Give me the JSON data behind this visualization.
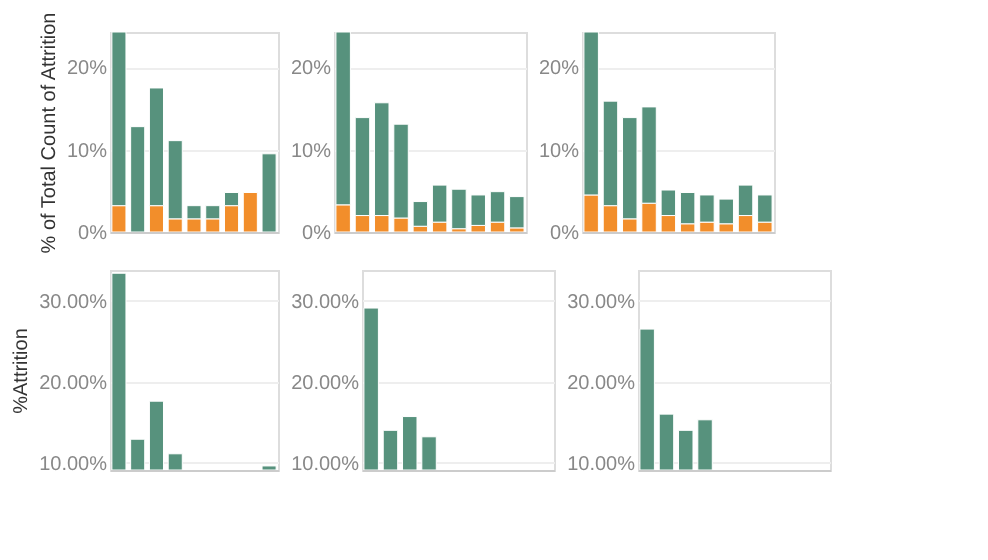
{
  "chart_data": [
    {
      "type": "bar",
      "stacked": true,
      "ylabel": "% of Total Count of Attrition",
      "categories": [
        null,
        null,
        null,
        null,
        null,
        null,
        null,
        null,
        null
      ],
      "ylim": [
        0,
        24.3
      ],
      "yticks": [
        {
          "value": 0,
          "label": "0%"
        },
        {
          "value": 10,
          "label": "10%"
        },
        {
          "value": 20,
          "label": "20%"
        }
      ],
      "grid": "y",
      "tick_labels": "y",
      "series": [
        {
          "color": "#f28e2b",
          "values": [
            3.2,
            null,
            3.2,
            1.6,
            1.6,
            1.6,
            3.2,
            4.8,
            null
          ]
        },
        {
          "color": "#57927d",
          "values": [
            21.1,
            12.8,
            14.3,
            9.5,
            1.6,
            1.6,
            1.6,
            null,
            9.5
          ]
        }
      ]
    },
    {
      "type": "bar",
      "stacked": true,
      "categories": [
        null,
        null,
        null,
        null,
        null,
        null,
        null,
        null,
        null,
        null
      ],
      "ylim": [
        0,
        24.3
      ],
      "yticks": [
        {
          "value": 0,
          "label": "0%"
        },
        {
          "value": 10,
          "label": "10%"
        },
        {
          "value": 20,
          "label": "20%"
        }
      ],
      "grid": "y",
      "tick_labels": "y",
      "series": [
        {
          "color": "#f28e2b",
          "values": [
            3.3,
            2.0,
            2.0,
            1.7,
            0.7,
            1.2,
            0.4,
            0.8,
            1.2,
            0.5
          ]
        },
        {
          "color": "#57927d",
          "values": [
            21.0,
            11.9,
            13.7,
            11.4,
            3.0,
            4.5,
            4.8,
            3.7,
            3.7,
            3.8
          ]
        }
      ]
    },
    {
      "type": "bar",
      "stacked": true,
      "categories": [
        null,
        null,
        null,
        null,
        null,
        null,
        null,
        null,
        null,
        null
      ],
      "ylim": [
        0,
        24.3
      ],
      "yticks": [
        {
          "value": 0,
          "label": "0%"
        },
        {
          "value": 10,
          "label": "10%"
        },
        {
          "value": 20,
          "label": "20%"
        }
      ],
      "grid": "y",
      "tick_labels": "y",
      "series": [
        {
          "color": "#f28e2b",
          "values": [
            4.5,
            3.2,
            1.6,
            3.5,
            2.0,
            1.0,
            1.2,
            1.0,
            2.0,
            1.2
          ]
        },
        {
          "color": "#57927d",
          "values": [
            19.8,
            12.7,
            12.3,
            11.7,
            3.1,
            3.8,
            3.3,
            3.0,
            3.7,
            3.3
          ]
        }
      ]
    },
    {
      "type": "bar",
      "ylabel": "%Attrition",
      "categories": [
        null,
        null,
        null,
        null,
        null,
        null,
        null,
        null,
        null
      ],
      "ylim": [
        9.1,
        33.8
      ],
      "yticks": [
        {
          "value": 10,
          "label": "10.00%"
        },
        {
          "value": 20,
          "label": "20.00%"
        },
        {
          "value": 30,
          "label": "30.00%"
        }
      ],
      "grid": "y",
      "tick_labels": "y",
      "series": [
        {
          "color": "#57927d",
          "values": [
            33.4,
            12.9,
            17.6,
            11.1,
            null,
            null,
            null,
            null,
            9.6
          ]
        }
      ]
    },
    {
      "type": "bar",
      "categories": [
        null,
        null,
        null,
        null,
        null,
        null,
        null,
        null,
        null,
        null
      ],
      "ylim": [
        9.1,
        33.8
      ],
      "yticks": [
        {
          "value": 10,
          "label": "10.00%"
        },
        {
          "value": 20,
          "label": "20.00%"
        },
        {
          "value": 30,
          "label": "30.00%"
        }
      ],
      "grid": "y",
      "tick_labels": "y",
      "series": [
        {
          "color": "#57927d",
          "values": [
            29.1,
            14.0,
            15.7,
            13.2,
            null,
            null,
            null,
            null,
            null,
            null
          ]
        }
      ]
    },
    {
      "type": "bar",
      "categories": [
        null,
        null,
        null,
        null,
        null,
        null,
        null,
        null,
        null,
        null
      ],
      "ylim": [
        9.1,
        33.8
      ],
      "yticks": [
        {
          "value": 10,
          "label": "10.00%"
        },
        {
          "value": 20,
          "label": "20.00%"
        },
        {
          "value": 30,
          "label": "30.00%"
        }
      ],
      "grid": "y",
      "tick_labels": "y",
      "series": [
        {
          "color": "#57927d",
          "values": [
            26.5,
            16.0,
            14.0,
            15.3,
            null,
            null,
            null,
            null,
            null,
            null
          ]
        }
      ]
    }
  ]
}
